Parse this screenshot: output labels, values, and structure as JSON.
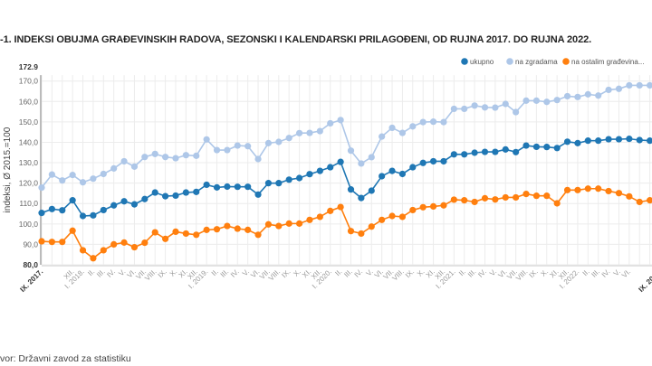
{
  "title": "-1. INDEKSI OBUJMA GRAĐEVINSKIH RADOVA, SEZONSKI I KALENDARSKI PRILAGOĐENI, OD RUJNA 2017. DO RUJNA 2022.",
  "source": "vor: Državni zavod za statistiku",
  "chart_data": {
    "type": "line",
    "title": "-1. INDEKSI OBUJMA GRAĐEVINSKIH RADOVA, SEZONSKI I KALENDARSKI PRILAGOĐENI, OD RUJNA 2017. DO RUJNA 2022.",
    "ylabel": "indeksi, Ø 2015.=100",
    "xlabel": "",
    "ylim": [
      80,
      172.9
    ],
    "ytick_labels": [
      "80,0",
      "90,0",
      "100,0",
      "110,0",
      "120,0",
      "130,0",
      "140,0",
      "150,0",
      "160,0",
      "170,0",
      "172.9"
    ],
    "grid": true,
    "legend_position": "top-right",
    "x_labels": [
      "IX. 2017.",
      "",
      "",
      "XII.",
      "I. 2018.",
      "II.",
      "III.",
      "IV.",
      "V.",
      "VI.",
      "VII.",
      "VIII.",
      "IX.",
      "X.",
      "XI.",
      "XII.",
      "I. 2019.",
      "II.",
      "III.",
      "IV.",
      "V.",
      "VI.",
      "VII.",
      "VIII.",
      "IX.",
      "X.",
      "XI.",
      "XII.",
      "I. 2020.",
      "II.",
      "III.",
      "IV.",
      "V.",
      "VI.",
      "VII.",
      "VIII.",
      "IX.",
      "X.",
      "XI.",
      "XII.",
      "I. 2021.",
      "II.",
      "III.",
      "IV.",
      "V.",
      "VI.",
      "VII.",
      "VIII.",
      "IX.",
      "X.",
      "XI.",
      "XII.",
      "I. 2022.",
      "II.",
      "III.",
      "IV.",
      "V.",
      "VI.",
      "",
      "",
      "IX. 2022."
    ],
    "series": [
      {
        "name": "ukupno",
        "color": "#1f77b4",
        "values": [
          105.4,
          107.3,
          106.7,
          111.6,
          103.9,
          104.2,
          106.8,
          109.1,
          111.1,
          109.6,
          112.2,
          115.4,
          113.6,
          113.9,
          115.4,
          115.7,
          119.2,
          117.9,
          118.3,
          118.2,
          118.2,
          114.4,
          120.0,
          120.0,
          121.7,
          122.5,
          124.4,
          126.0,
          127.8,
          130.4,
          116.9,
          112.7,
          116.3,
          123.4,
          126.0,
          124.5,
          127.8,
          129.9,
          130.7,
          130.7,
          134.1,
          134.1,
          134.9,
          135.3,
          135.3,
          136.5,
          135.2,
          138.4,
          137.8,
          137.7,
          137.2,
          140.3,
          139.6,
          140.8,
          140.8,
          141.5,
          141.5,
          141.7,
          141.1,
          140.8,
          140.6
        ]
      },
      {
        "name": "na zgradama",
        "color": "#aec7e8",
        "values": [
          117.8,
          124.2,
          121.3,
          124.0,
          120.4,
          122.2,
          124.5,
          127.2,
          130.7,
          128.1,
          132.8,
          134.3,
          132.8,
          132.2,
          133.7,
          133.4,
          141.4,
          136.2,
          136.2,
          138.4,
          138.1,
          131.8,
          139.6,
          140.2,
          142.1,
          144.5,
          144.6,
          145.5,
          149.3,
          150.9,
          135.9,
          129.6,
          132.7,
          142.8,
          147.1,
          144.6,
          147.8,
          149.9,
          150.1,
          149.9,
          156.4,
          156.4,
          158.0,
          157.1,
          157.0,
          158.8,
          154.8,
          160.4,
          160.4,
          159.8,
          160.7,
          162.6,
          162.2,
          163.5,
          162.9,
          165.7,
          166.2,
          167.9,
          167.9,
          167.9,
          168.2
        ]
      },
      {
        "name": "na ostalim građevina...",
        "color": "#ff7f0e",
        "values": [
          91.5,
          91.2,
          91.2,
          96.7,
          87.1,
          83.2,
          87.1,
          90.0,
          90.9,
          88.6,
          90.8,
          95.9,
          92.7,
          96.2,
          95.3,
          94.7,
          97.1,
          97.4,
          99.0,
          97.7,
          97.1,
          94.7,
          99.8,
          99.0,
          100.2,
          100.2,
          102.0,
          103.5,
          106.4,
          108.3,
          96.5,
          95.3,
          98.7,
          102.0,
          103.9,
          103.5,
          106.8,
          108.2,
          108.6,
          109.1,
          111.9,
          111.6,
          110.8,
          112.6,
          112.0,
          113.0,
          113.0,
          114.7,
          113.8,
          113.8,
          110.1,
          116.6,
          116.6,
          117.3,
          117.3,
          116.1,
          115.1,
          113.5,
          110.8,
          111.6,
          111.6
        ]
      }
    ]
  }
}
